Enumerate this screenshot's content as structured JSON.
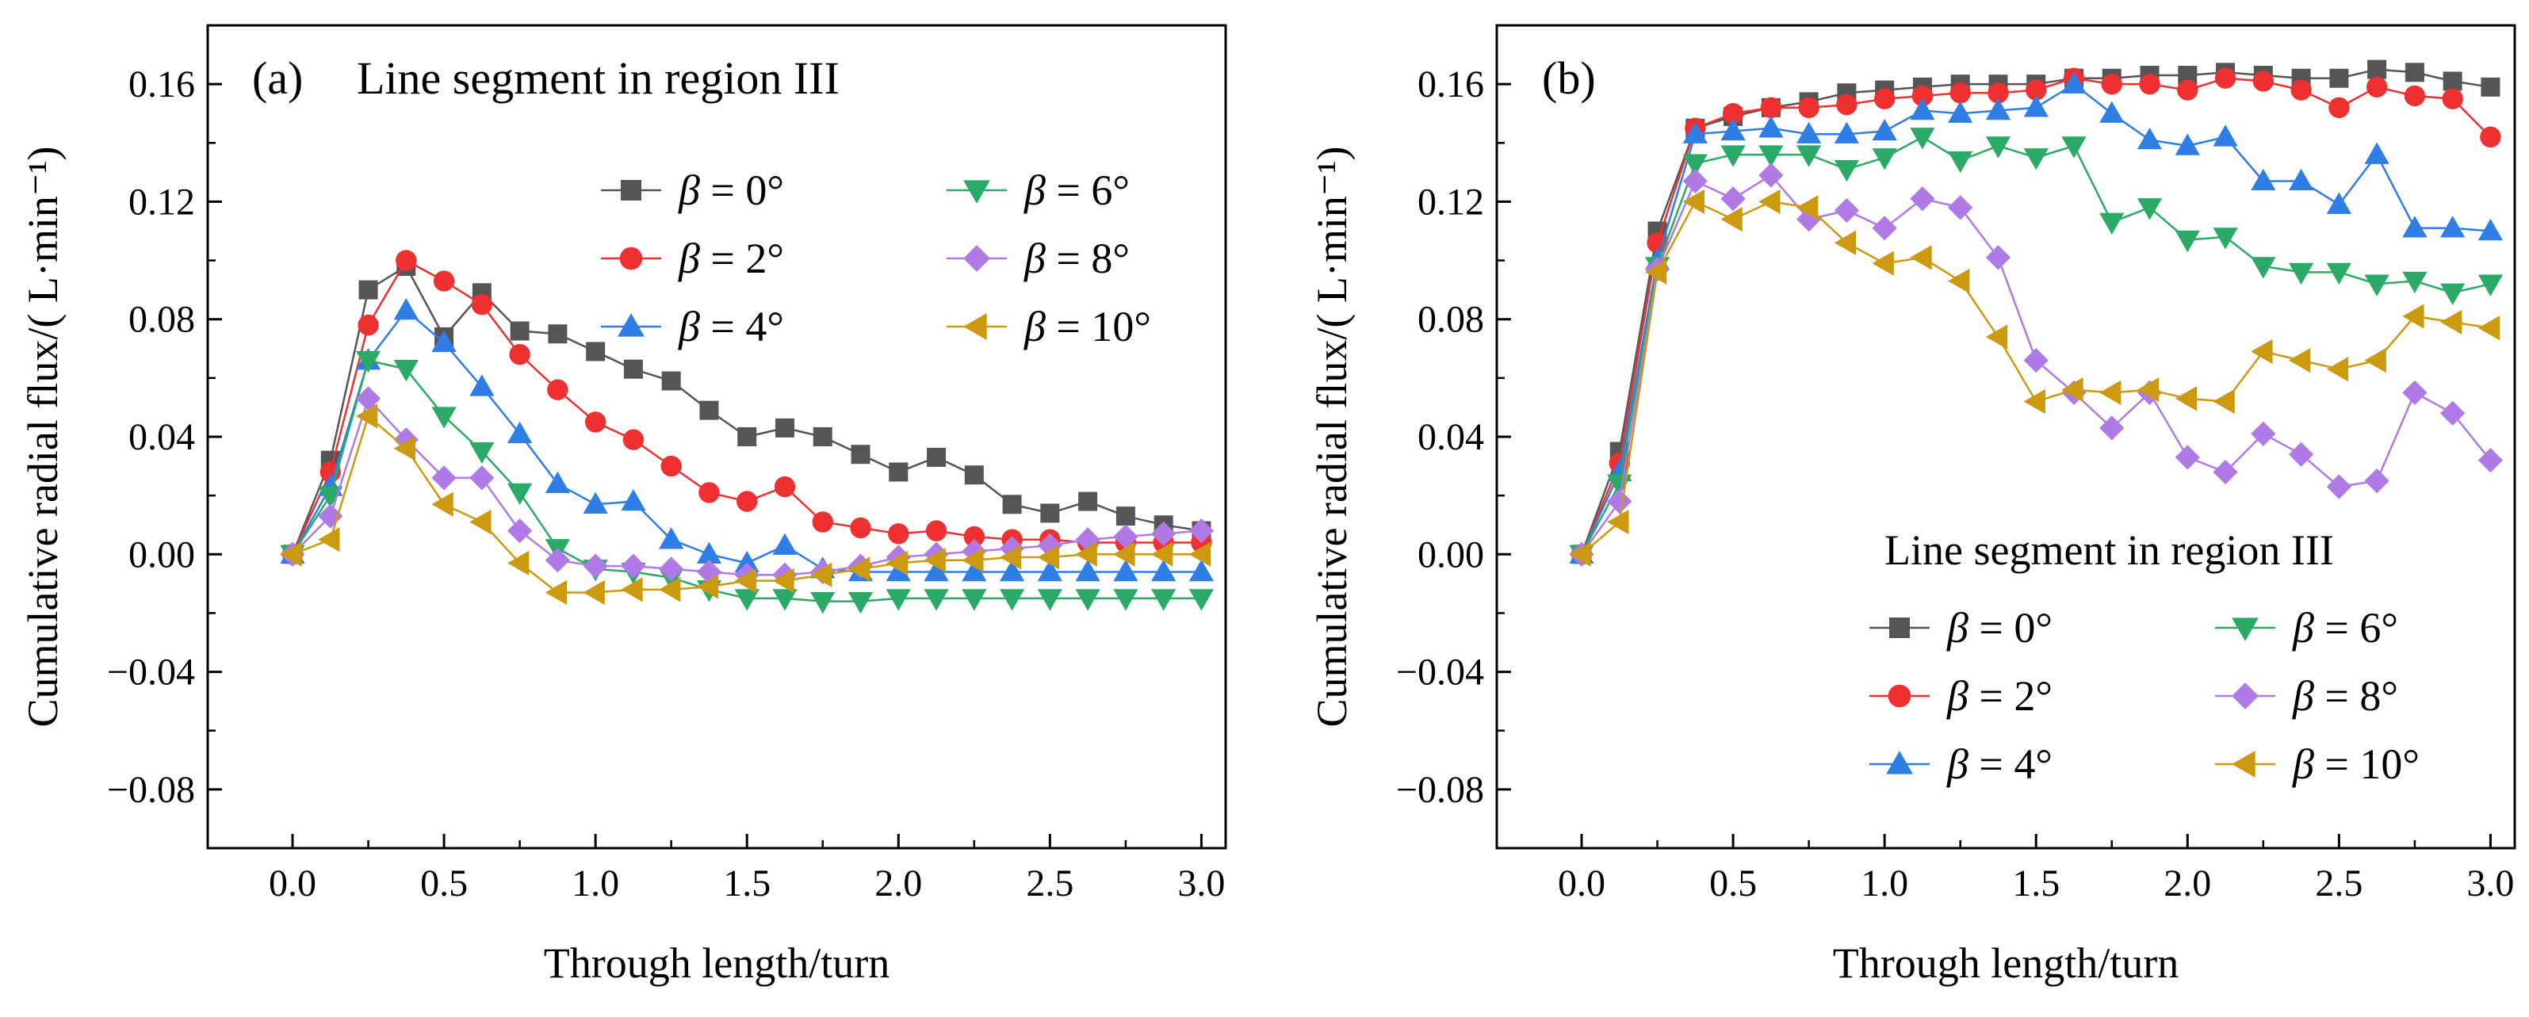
{
  "chart_data": [
    {
      "type": "line",
      "panel_label": "(a)",
      "title": "Line segment in region III",
      "xlabel": "Through length/turn",
      "ylabel": "Cumulative radial flux/( L·min⁻¹)",
      "xlim": [
        -0.28,
        3.08
      ],
      "ylim": [
        -0.1,
        0.18
      ],
      "xticks": [
        0.0,
        0.5,
        1.0,
        1.5,
        2.0,
        2.5,
        3.0
      ],
      "xtick_labels": [
        "0.0",
        "0.5",
        "1.0",
        "1.5",
        "2.0",
        "2.5",
        "3.0"
      ],
      "yticks": [
        -0.08,
        -0.04,
        0.0,
        0.04,
        0.08,
        0.12,
        0.16
      ],
      "ytick_labels": [
        "−0.08",
        "−0.04",
        "0.00",
        "0.04",
        "0.08",
        "0.12",
        "0.16"
      ],
      "legend_position": "upper-right",
      "x": [
        0,
        0.125,
        0.25,
        0.375,
        0.5,
        0.625,
        0.75,
        0.875,
        1.0,
        1.125,
        1.25,
        1.375,
        1.5,
        1.625,
        1.75,
        1.875,
        2.0,
        2.125,
        2.25,
        2.375,
        2.5,
        2.625,
        2.75,
        2.875,
        3.0
      ],
      "series": [
        {
          "name": "β = 0°",
          "symbol": "β",
          "value": " = 0°",
          "marker": "square",
          "color": "#555555",
          "values": [
            0,
            0.032,
            0.09,
            0.098,
            0.074,
            0.089,
            0.076,
            0.075,
            0.069,
            0.063,
            0.059,
            0.049,
            0.04,
            0.043,
            0.04,
            0.034,
            0.028,
            0.033,
            0.027,
            0.017,
            0.014,
            0.018,
            0.013,
            0.01,
            0.008
          ]
        },
        {
          "name": "β = 2°",
          "symbol": "β",
          "value": " = 2°",
          "marker": "circle",
          "color": "#ee3030",
          "values": [
            0,
            0.028,
            0.078,
            0.1,
            0.093,
            0.085,
            0.068,
            0.056,
            0.045,
            0.039,
            0.03,
            0.021,
            0.018,
            0.023,
            0.011,
            0.009,
            0.007,
            0.008,
            0.006,
            0.005,
            0.005,
            0.004,
            0.004,
            0.004,
            0.004
          ]
        },
        {
          "name": "β = 4°",
          "symbol": "β",
          "value": " = 4°",
          "marker": "triangle-up",
          "color": "#2f7ee6",
          "values": [
            0,
            0.023,
            0.066,
            0.083,
            0.072,
            0.057,
            0.041,
            0.024,
            0.017,
            0.018,
            0.005,
            0.0,
            -0.003,
            0.003,
            -0.005,
            -0.006,
            -0.006,
            -0.006,
            -0.006,
            -0.006,
            -0.006,
            -0.006,
            -0.006,
            -0.006,
            -0.006
          ]
        },
        {
          "name": "β = 6°",
          "symbol": "β",
          "value": " = 6°",
          "marker": "triangle-down",
          "color": "#2aaa66",
          "values": [
            0,
            0.02,
            0.066,
            0.063,
            0.047,
            0.035,
            0.021,
            0.002,
            -0.005,
            -0.006,
            -0.008,
            -0.012,
            -0.015,
            -0.015,
            -0.016,
            -0.016,
            -0.015,
            -0.015,
            -0.015,
            -0.015,
            -0.015,
            -0.015,
            -0.015,
            -0.015,
            -0.015
          ]
        },
        {
          "name": "β = 8°",
          "symbol": "β",
          "value": " = 8°",
          "marker": "diamond",
          "color": "#b07ae6",
          "values": [
            0,
            0.013,
            0.053,
            0.039,
            0.026,
            0.026,
            0.008,
            -0.002,
            -0.004,
            -0.004,
            -0.005,
            -0.006,
            -0.007,
            -0.007,
            -0.006,
            -0.004,
            -0.001,
            0.0,
            0.001,
            0.002,
            0.003,
            0.005,
            0.006,
            0.007,
            0.008
          ]
        },
        {
          "name": "β = 10°",
          "symbol": "β",
          "value": " = 10°",
          "marker": "triangle-left",
          "color": "#cc9a10",
          "values": [
            0,
            0.005,
            0.047,
            0.036,
            0.017,
            0.011,
            -0.003,
            -0.013,
            -0.013,
            -0.012,
            -0.012,
            -0.011,
            -0.009,
            -0.009,
            -0.007,
            -0.005,
            -0.003,
            -0.002,
            -0.002,
            -0.001,
            -0.001,
            0.0,
            0.0,
            0.0,
            0.0
          ]
        }
      ]
    },
    {
      "type": "line",
      "panel_label": "(b)",
      "title": "Line segment in region III",
      "xlabel": "Through length/turn",
      "ylabel": "Cumulative radial flux/( L·min⁻¹)",
      "xlim": [
        -0.28,
        3.08
      ],
      "ylim": [
        -0.1,
        0.18
      ],
      "xticks": [
        0.0,
        0.5,
        1.0,
        1.5,
        2.0,
        2.5,
        3.0
      ],
      "xtick_labels": [
        "0.0",
        "0.5",
        "1.0",
        "1.5",
        "2.0",
        "2.5",
        "3.0"
      ],
      "yticks": [
        -0.08,
        -0.04,
        0.0,
        0.04,
        0.08,
        0.12,
        0.16
      ],
      "ytick_labels": [
        "−0.08",
        "−0.04",
        "0.00",
        "0.04",
        "0.08",
        "0.12",
        "0.16"
      ],
      "legend_position": "lower-right",
      "x": [
        0,
        0.125,
        0.25,
        0.375,
        0.5,
        0.625,
        0.75,
        0.875,
        1.0,
        1.125,
        1.25,
        1.375,
        1.5,
        1.625,
        1.75,
        1.875,
        2.0,
        2.125,
        2.25,
        2.375,
        2.5,
        2.625,
        2.75,
        2.875,
        3.0
      ],
      "series": [
        {
          "name": "β = 0°",
          "symbol": "β",
          "value": " = 0°",
          "marker": "square",
          "color": "#555555",
          "values": [
            0,
            0.035,
            0.11,
            0.145,
            0.149,
            0.152,
            0.154,
            0.157,
            0.158,
            0.159,
            0.16,
            0.16,
            0.16,
            0.162,
            0.162,
            0.163,
            0.163,
            0.164,
            0.163,
            0.162,
            0.162,
            0.165,
            0.164,
            0.161,
            0.159
          ]
        },
        {
          "name": "β = 2°",
          "symbol": "β",
          "value": " = 2°",
          "marker": "circle",
          "color": "#ee3030",
          "values": [
            0,
            0.031,
            0.106,
            0.145,
            0.15,
            0.152,
            0.152,
            0.153,
            0.155,
            0.156,
            0.157,
            0.157,
            0.158,
            0.162,
            0.16,
            0.16,
            0.158,
            0.162,
            0.161,
            0.158,
            0.152,
            0.159,
            0.156,
            0.155,
            0.142
          ]
        },
        {
          "name": "β = 4°",
          "symbol": "β",
          "value": " = 4°",
          "marker": "triangle-up",
          "color": "#2f7ee6",
          "values": [
            0,
            0.028,
            0.1,
            0.143,
            0.144,
            0.145,
            0.143,
            0.143,
            0.144,
            0.151,
            0.15,
            0.151,
            0.152,
            0.16,
            0.15,
            0.141,
            0.139,
            0.142,
            0.127,
            0.127,
            0.119,
            0.136,
            0.111,
            0.111,
            0.11
          ]
        },
        {
          "name": "β = 6°",
          "symbol": "β",
          "value": " = 6°",
          "marker": "triangle-down",
          "color": "#2aaa66",
          "values": [
            0,
            0.024,
            0.098,
            0.133,
            0.136,
            0.136,
            0.136,
            0.131,
            0.135,
            0.142,
            0.134,
            0.139,
            0.135,
            0.139,
            0.113,
            0.118,
            0.107,
            0.108,
            0.098,
            0.096,
            0.096,
            0.092,
            0.093,
            0.089,
            0.092
          ]
        },
        {
          "name": "β = 8°",
          "symbol": "β",
          "value": " = 8°",
          "marker": "diamond",
          "color": "#b07ae6",
          "values": [
            0,
            0.018,
            0.097,
            0.127,
            0.121,
            0.129,
            0.114,
            0.117,
            0.111,
            0.121,
            0.118,
            0.101,
            0.066,
            0.055,
            0.043,
            0.055,
            0.033,
            0.028,
            0.041,
            0.034,
            0.023,
            0.025,
            0.055,
            0.048,
            0.032
          ]
        },
        {
          "name": "β = 10°",
          "symbol": "β",
          "value": " = 10°",
          "marker": "triangle-left",
          "color": "#cc9a10",
          "values": [
            0,
            0.011,
            0.096,
            0.12,
            0.114,
            0.12,
            0.118,
            0.106,
            0.099,
            0.101,
            0.093,
            0.074,
            0.052,
            0.056,
            0.055,
            0.056,
            0.053,
            0.052,
            0.069,
            0.066,
            0.063,
            0.066,
            0.081,
            0.079,
            0.077
          ]
        }
      ]
    }
  ]
}
